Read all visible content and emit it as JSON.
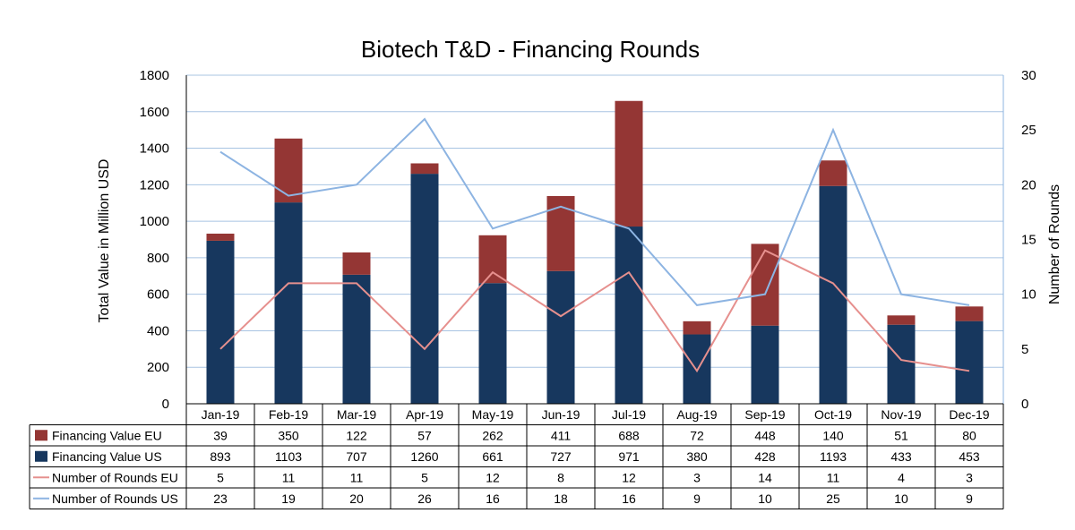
{
  "chart_data": {
    "type": "bar",
    "title": "Biotech T&D - Financing Rounds",
    "ylabel": "Total Value in Million USD",
    "y2label": "Number of Rounds",
    "ylim": [
      0,
      1800
    ],
    "y2lim": [
      0,
      30
    ],
    "yticks": [
      "0",
      "200",
      "400",
      "600",
      "800",
      "1000",
      "1200",
      "1400",
      "1600",
      "1800"
    ],
    "y2ticks": [
      "0",
      "5",
      "10",
      "15",
      "20",
      "25",
      "30"
    ],
    "categories": [
      "Jan-19",
      "Feb-19",
      "Mar-19",
      "Apr-19",
      "May-19",
      "Jun-19",
      "Jul-19",
      "Aug-19",
      "Sep-19",
      "Oct-19",
      "Nov-19",
      "Dec-19"
    ],
    "series": [
      {
        "name": "Financing Value EU",
        "kind": "bar",
        "color": "#943634",
        "values": [
          39,
          350,
          122,
          57,
          262,
          411,
          688,
          72,
          448,
          140,
          51,
          80
        ]
      },
      {
        "name": "Financing Value US",
        "kind": "bar",
        "color": "#17375e",
        "values": [
          893,
          1103,
          707,
          1260,
          661,
          727,
          971,
          380,
          428,
          1193,
          433,
          453
        ]
      },
      {
        "name": "Number of Rounds EU",
        "kind": "line",
        "axis": "secondary",
        "color": "#e6908e",
        "values": [
          5,
          11,
          11,
          5,
          12,
          8,
          12,
          3,
          14,
          11,
          4,
          3
        ]
      },
      {
        "name": "Number of Rounds US",
        "kind": "line",
        "axis": "secondary",
        "color": "#8db4e2",
        "values": [
          23,
          19,
          20,
          26,
          16,
          18,
          16,
          9,
          10,
          25,
          10,
          9
        ]
      }
    ],
    "grid": true,
    "legend": "data-table"
  }
}
